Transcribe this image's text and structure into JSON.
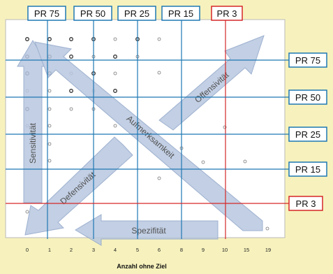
{
  "top_labels": [
    {
      "text": "PR 75",
      "color": "#1f78b4"
    },
    {
      "text": "PR 50",
      "color": "#1f78b4"
    },
    {
      "text": "PR 25",
      "color": "#1f78b4"
    },
    {
      "text": "PR 15",
      "color": "#1f78b4"
    },
    {
      "text": "PR 3",
      "color": "#d62728"
    }
  ],
  "right_labels": [
    {
      "text": "PR 75",
      "color": "#1f78b4"
    },
    {
      "text": "PR 50",
      "color": "#1f78b4"
    },
    {
      "text": "PR 25",
      "color": "#1f78b4"
    },
    {
      "text": "PR 15",
      "color": "#1f78b4"
    },
    {
      "text": "PR 3",
      "color": "#d62728"
    }
  ],
  "x_ticks": [
    "0",
    "1",
    "2",
    "3",
    "4",
    "5",
    "6",
    "8",
    "9",
    "10",
    "15",
    "19"
  ],
  "x_axis_label": "Anzahl ohne Ziel",
  "arrows": {
    "sensitivity": "Sensitivität",
    "attention": "Aufmerksamkeit",
    "offensivity": "Offensivität",
    "defensivity": "Defensivität",
    "specificity": "Spezifität"
  },
  "colors": {
    "background": "#f7f2bd",
    "plot": "#ffffff",
    "blue_line": "#1f78b4",
    "red_line": "#d62728",
    "arrow_fill": "#b8c7e0",
    "arrow_stroke": "#8ea4c8"
  }
}
